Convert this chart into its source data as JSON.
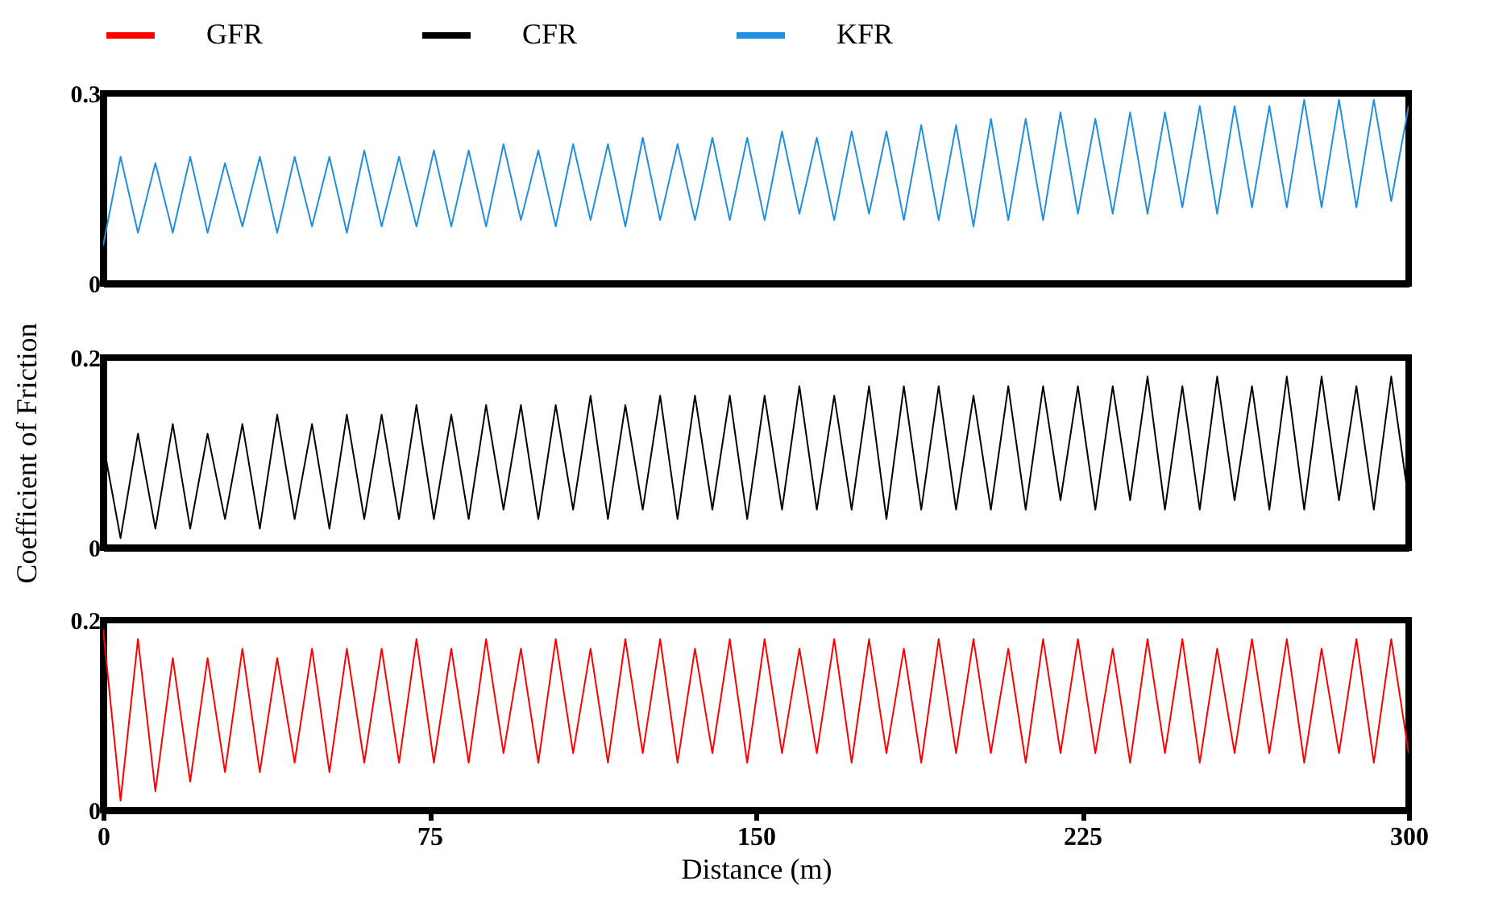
{
  "chart_data": [
    {
      "type": "line",
      "legend": "top",
      "xlim": [
        0,
        300
      ],
      "ylim": [
        0,
        0.3
      ],
      "yticks": [
        0,
        0.3
      ],
      "tick_labels": "y",
      "grid": false,
      "x": [
        0,
        4,
        8,
        12,
        16,
        20,
        24,
        28,
        32,
        36,
        40,
        44,
        48,
        52,
        56,
        60,
        64,
        68,
        72,
        76,
        80,
        84,
        88,
        92,
        96,
        100,
        104,
        108,
        112,
        116,
        120,
        124,
        128,
        132,
        136,
        140,
        144,
        148,
        152,
        156,
        160,
        164,
        168,
        172,
        176,
        180,
        184,
        188,
        192,
        196,
        200,
        204,
        208,
        212,
        216,
        220,
        224,
        228,
        232,
        236,
        240,
        244,
        248,
        252,
        256,
        260,
        264,
        268,
        272,
        276,
        280,
        284,
        288,
        292,
        296,
        300
      ],
      "series": [
        {
          "name": "KFR",
          "color": "#1f8fe0",
          "values": [
            0.06,
            0.2,
            0.08,
            0.19,
            0.08,
            0.2,
            0.08,
            0.19,
            0.09,
            0.2,
            0.08,
            0.2,
            0.09,
            0.2,
            0.08,
            0.21,
            0.09,
            0.2,
            0.09,
            0.21,
            0.09,
            0.21,
            0.09,
            0.22,
            0.1,
            0.21,
            0.09,
            0.22,
            0.1,
            0.22,
            0.09,
            0.23,
            0.1,
            0.22,
            0.1,
            0.23,
            0.1,
            0.23,
            0.1,
            0.24,
            0.11,
            0.23,
            0.1,
            0.24,
            0.11,
            0.24,
            0.1,
            0.25,
            0.1,
            0.25,
            0.09,
            0.26,
            0.1,
            0.26,
            0.1,
            0.27,
            0.11,
            0.26,
            0.11,
            0.27,
            0.11,
            0.27,
            0.12,
            0.28,
            0.11,
            0.28,
            0.12,
            0.28,
            0.12,
            0.29,
            0.12,
            0.29,
            0.12,
            0.29,
            0.13,
            0.28
          ]
        }
      ]
    },
    {
      "type": "line",
      "legend": "top",
      "xlim": [
        0,
        300
      ],
      "ylim": [
        0,
        0.2
      ],
      "yticks": [
        0,
        0.2
      ],
      "tick_labels": "y",
      "grid": false,
      "ylabel": "Coefficient of Friction",
      "x": [
        0,
        4,
        8,
        12,
        16,
        20,
        24,
        28,
        32,
        36,
        40,
        44,
        48,
        52,
        56,
        60,
        64,
        68,
        72,
        76,
        80,
        84,
        88,
        92,
        96,
        100,
        104,
        108,
        112,
        116,
        120,
        124,
        128,
        132,
        136,
        140,
        144,
        148,
        152,
        156,
        160,
        164,
        168,
        172,
        176,
        180,
        184,
        188,
        192,
        196,
        200,
        204,
        208,
        212,
        216,
        220,
        224,
        228,
        232,
        236,
        240,
        244,
        248,
        252,
        256,
        260,
        264,
        268,
        272,
        276,
        280,
        284,
        288,
        292,
        296,
        300
      ],
      "series": [
        {
          "name": "CFR",
          "color": "#000000",
          "values": [
            0.11,
            0.01,
            0.12,
            0.02,
            0.13,
            0.02,
            0.12,
            0.03,
            0.13,
            0.02,
            0.14,
            0.03,
            0.13,
            0.02,
            0.14,
            0.03,
            0.14,
            0.03,
            0.15,
            0.03,
            0.14,
            0.03,
            0.15,
            0.04,
            0.15,
            0.03,
            0.15,
            0.04,
            0.16,
            0.03,
            0.15,
            0.04,
            0.16,
            0.03,
            0.16,
            0.04,
            0.16,
            0.03,
            0.16,
            0.04,
            0.17,
            0.04,
            0.16,
            0.04,
            0.17,
            0.03,
            0.17,
            0.04,
            0.17,
            0.04,
            0.16,
            0.04,
            0.17,
            0.04,
            0.17,
            0.05,
            0.17,
            0.04,
            0.17,
            0.05,
            0.18,
            0.04,
            0.17,
            0.04,
            0.18,
            0.05,
            0.17,
            0.04,
            0.18,
            0.04,
            0.18,
            0.05,
            0.17,
            0.04,
            0.18,
            0.05
          ]
        }
      ]
    },
    {
      "type": "line",
      "legend": "top",
      "xlim": [
        0,
        300
      ],
      "xticks": [
        0,
        75,
        150,
        225,
        300
      ],
      "ylim": [
        0,
        0.2
      ],
      "yticks": [
        0,
        0.2
      ],
      "grid": false,
      "xlabel": "Distance (m)",
      "x": [
        0,
        4,
        8,
        12,
        16,
        20,
        24,
        28,
        32,
        36,
        40,
        44,
        48,
        52,
        56,
        60,
        64,
        68,
        72,
        76,
        80,
        84,
        88,
        92,
        96,
        100,
        104,
        108,
        112,
        116,
        120,
        124,
        128,
        132,
        136,
        140,
        144,
        148,
        152,
        156,
        160,
        164,
        168,
        172,
        176,
        180,
        184,
        188,
        192,
        196,
        200,
        204,
        208,
        212,
        216,
        220,
        224,
        228,
        232,
        236,
        240,
        244,
        248,
        252,
        256,
        260,
        264,
        268,
        272,
        276,
        280,
        284,
        288,
        292,
        296,
        300
      ],
      "series": [
        {
          "name": "GFR",
          "color": "#ff0000",
          "values": [
            0.19,
            0.01,
            0.18,
            0.02,
            0.16,
            0.03,
            0.16,
            0.04,
            0.17,
            0.04,
            0.16,
            0.05,
            0.17,
            0.04,
            0.17,
            0.05,
            0.17,
            0.05,
            0.18,
            0.05,
            0.17,
            0.05,
            0.18,
            0.06,
            0.17,
            0.05,
            0.18,
            0.06,
            0.17,
            0.05,
            0.18,
            0.06,
            0.18,
            0.05,
            0.17,
            0.06,
            0.18,
            0.05,
            0.18,
            0.06,
            0.17,
            0.06,
            0.18,
            0.05,
            0.18,
            0.06,
            0.17,
            0.05,
            0.18,
            0.06,
            0.18,
            0.06,
            0.17,
            0.05,
            0.18,
            0.06,
            0.18,
            0.06,
            0.17,
            0.05,
            0.18,
            0.06,
            0.18,
            0.05,
            0.17,
            0.06,
            0.18,
            0.06,
            0.18,
            0.05,
            0.17,
            0.06,
            0.18,
            0.05,
            0.18,
            0.06
          ]
        }
      ]
    }
  ]
}
